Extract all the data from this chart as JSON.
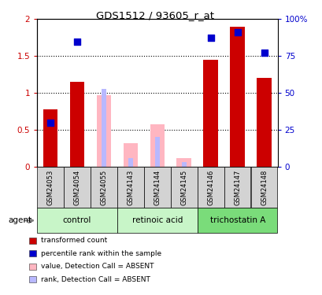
{
  "title": "GDS1512 / 93605_r_at",
  "samples": [
    "GSM24053",
    "GSM24054",
    "GSM24055",
    "GSM24143",
    "GSM24144",
    "GSM24145",
    "GSM24146",
    "GSM24147",
    "GSM24148"
  ],
  "transformed_count": [
    0.78,
    1.15,
    null,
    null,
    null,
    null,
    1.45,
    1.9,
    1.2
  ],
  "percentile_rank": [
    0.6,
    1.7,
    null,
    null,
    null,
    null,
    1.75,
    1.82,
    1.55
  ],
  "absent_value": [
    null,
    null,
    0.97,
    0.32,
    0.57,
    0.12,
    null,
    null,
    null
  ],
  "absent_rank": [
    null,
    null,
    1.05,
    0.12,
    0.4,
    0.06,
    null,
    null,
    null
  ],
  "ylim": [
    0,
    2.0
  ],
  "y2lim": [
    0,
    100
  ],
  "yticks": [
    0,
    0.5,
    1.0,
    1.5,
    2.0
  ],
  "ytick_labels": [
    "0",
    "0.5",
    "1",
    "1.5",
    "2"
  ],
  "y2ticks": [
    0,
    25,
    50,
    75,
    100
  ],
  "y2tick_labels": [
    "0",
    "25",
    "50",
    "75",
    "100%"
  ],
  "bar_width": 0.55,
  "rank_marker_size": 40,
  "colors": {
    "transformed_count": "#cc0000",
    "percentile_rank": "#0000cd",
    "absent_value": "#ffb6c1",
    "absent_rank": "#b8b8ff",
    "group_control": "#c8f5c8",
    "group_retinoic": "#c8f5c8",
    "group_trichostatin": "#7adc7a",
    "sample_bg": "#d3d3d3",
    "plot_bg": "#ffffff"
  },
  "groups": [
    {
      "label": "control",
      "start": 0,
      "end": 2,
      "color": "#c8f5c8"
    },
    {
      "label": "retinoic acid",
      "start": 3,
      "end": 5,
      "color": "#c8f5c8"
    },
    {
      "label": "trichostatin A",
      "start": 6,
      "end": 8,
      "color": "#7adc7a"
    }
  ],
  "legend_items": [
    {
      "label": "transformed count",
      "color": "#cc0000"
    },
    {
      "label": "percentile rank within the sample",
      "color": "#0000cd"
    },
    {
      "label": "value, Detection Call = ABSENT",
      "color": "#ffb6c1"
    },
    {
      "label": "rank, Detection Call = ABSENT",
      "color": "#b8b8ff"
    }
  ],
  "agent_label": "agent"
}
